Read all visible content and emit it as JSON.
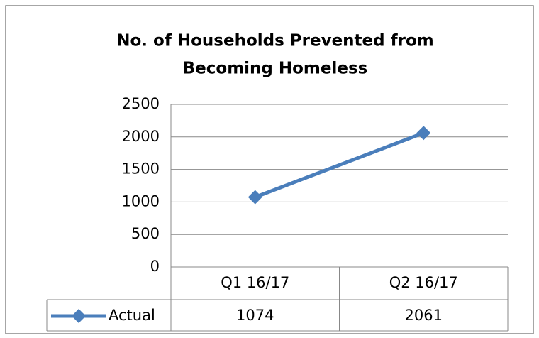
{
  "chart_data": {
    "type": "line",
    "title": [
      "No. of Households  Prevented from",
      "Becoming Homeless"
    ],
    "categories": [
      "Q1 16/17",
      "Q2 16/17"
    ],
    "series": [
      {
        "name": "Actual",
        "color": "#4a7ebb",
        "values": [
          1074,
          2061
        ]
      }
    ],
    "ylim": [
      0,
      2500
    ],
    "yticks": [
      0,
      500,
      1000,
      1500,
      2000,
      2500
    ],
    "grid": true,
    "data_table": true
  }
}
